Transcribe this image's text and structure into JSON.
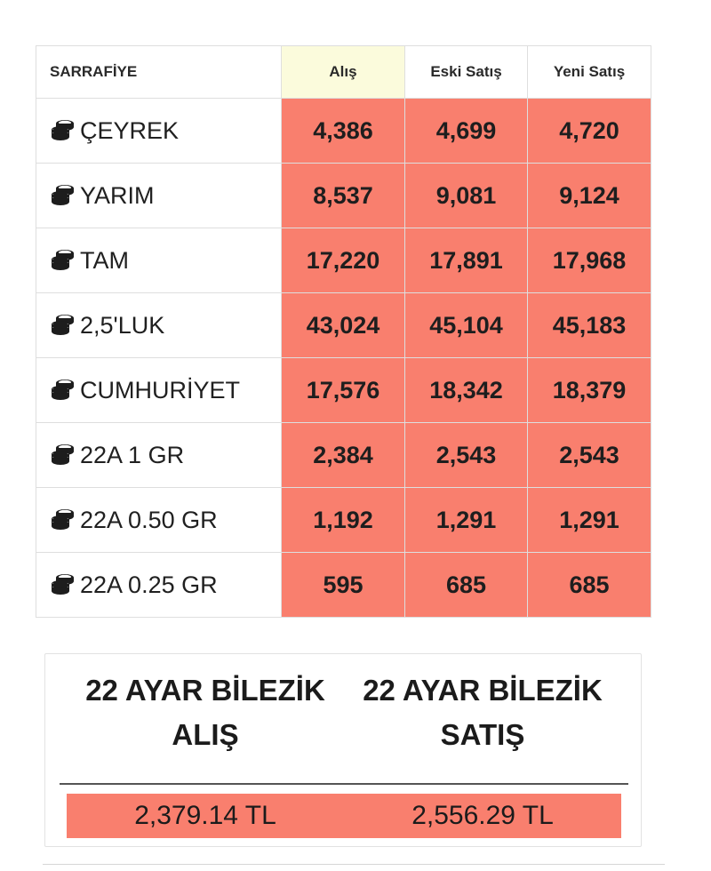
{
  "table": {
    "headers": {
      "name": "SARRAFİYE",
      "buy": "Alış",
      "old_sell": "Eski Satış",
      "new_sell": "Yeni Satış"
    },
    "row_icon": "coins-icon",
    "rows": [
      {
        "name": "ÇEYREK",
        "buy": "4,386",
        "old_sell": "4,699",
        "new_sell": "4,720"
      },
      {
        "name": "YARIM",
        "buy": "8,537",
        "old_sell": "9,081",
        "new_sell": "9,124"
      },
      {
        "name": "TAM",
        "buy": "17,220",
        "old_sell": "17,891",
        "new_sell": "17,968"
      },
      {
        "name": "2,5'LUK",
        "buy": "43,024",
        "old_sell": "45,104",
        "new_sell": "45,183"
      },
      {
        "name": "CUMHURİYET",
        "buy": "17,576",
        "old_sell": "18,342",
        "new_sell": "18,379"
      },
      {
        "name": "22A 1 GR",
        "buy": "2,384",
        "old_sell": "2,543",
        "new_sell": "2,543"
      },
      {
        "name": "22A 0.50 GR",
        "buy": "1,192",
        "old_sell": "1,291",
        "new_sell": "1,291"
      },
      {
        "name": "22A 0.25 GR",
        "buy": "595",
        "old_sell": "685",
        "new_sell": "685"
      }
    ]
  },
  "bracelet": {
    "buy_heading_line1": "22 AYAR BİLEZİK",
    "buy_heading_line2": "ALIŞ",
    "sell_heading_line1": "22 AYAR BİLEZİK",
    "sell_heading_line2": "SATIŞ",
    "buy_value": "2,379.14 TL",
    "sell_value": "2,556.29 TL"
  },
  "colors": {
    "price_cell_bg": "#f97f6e",
    "buy_header_bg": "#fbfbdc",
    "border": "#dedede"
  }
}
